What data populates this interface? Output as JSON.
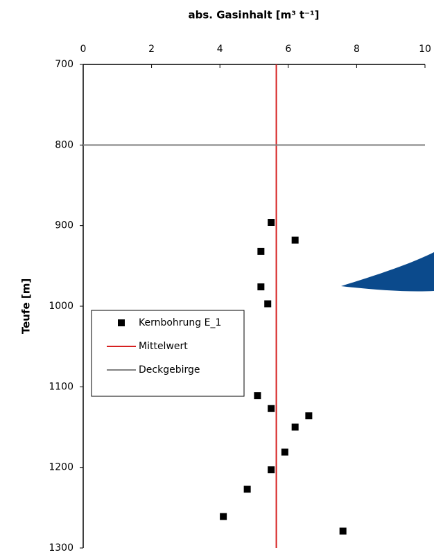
{
  "chart_data": {
    "type": "scatter",
    "x_label": "abs. Gasinhalt [m³ t⁻¹]",
    "y_label": "Teufe [m]",
    "xlim": [
      0,
      10
    ],
    "xticks": [
      0,
      2,
      4,
      6,
      8,
      10
    ],
    "ylim": [
      700,
      1300
    ],
    "yticks": [
      700,
      800,
      900,
      1000,
      1100,
      1200,
      1300
    ],
    "y_inverted": true,
    "x_axis_position": "top",
    "legend": "left",
    "series": [
      {
        "name": "Kernbohrung E_1",
        "mode": "markers",
        "color": "#000000",
        "x": [
          5.5,
          6.2,
          5.2,
          5.2,
          5.4,
          5.1,
          5.5,
          6.6,
          6.2,
          5.9,
          5.5,
          4.8,
          4.1,
          7.6
        ],
        "values": [
          896,
          918,
          932,
          976,
          997,
          1111,
          1127,
          1136,
          1150,
          1181,
          1203,
          1227,
          1261,
          1279
        ]
      },
      {
        "name": "Mittelwert",
        "mode": "line",
        "color": "#d62020",
        "x": [
          5.65,
          5.65
        ],
        "values": [
          700,
          1300
        ]
      },
      {
        "name": "Deckgebirge",
        "mode": "line",
        "color": "#808080",
        "x": [
          0,
          10
        ],
        "values": [
          800,
          800
        ]
      }
    ]
  }
}
